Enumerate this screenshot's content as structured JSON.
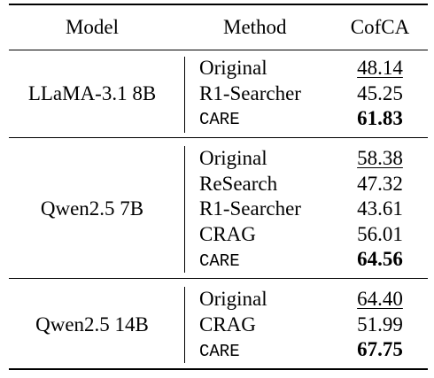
{
  "table": {
    "headers": [
      "Model",
      "Method",
      "CofCA"
    ],
    "groups": [
      {
        "model": "LLaMA-3.1 8B",
        "rows": [
          {
            "method": "Original",
            "score": "48.14",
            "style": "underline"
          },
          {
            "method": "R1-Searcher",
            "score": "45.25",
            "style": "normal"
          },
          {
            "method": "CARE",
            "score": "61.83",
            "style": "bold"
          }
        ]
      },
      {
        "model": "Qwen2.5 7B",
        "rows": [
          {
            "method": "Original",
            "score": "58.38",
            "style": "underline"
          },
          {
            "method": "ReSearch",
            "score": "47.32",
            "style": "normal"
          },
          {
            "method": "R1-Searcher",
            "score": "43.61",
            "style": "normal"
          },
          {
            "method": "CRAG",
            "score": "56.01",
            "style": "normal"
          },
          {
            "method": "CARE",
            "score": "64.56",
            "style": "bold"
          }
        ]
      },
      {
        "model": "Qwen2.5 14B",
        "rows": [
          {
            "method": "Original",
            "score": "64.40",
            "style": "underline"
          },
          {
            "method": "CRAG",
            "score": "51.99",
            "style": "normal"
          },
          {
            "method": "CARE",
            "score": "67.75",
            "style": "bold"
          }
        ]
      }
    ]
  }
}
